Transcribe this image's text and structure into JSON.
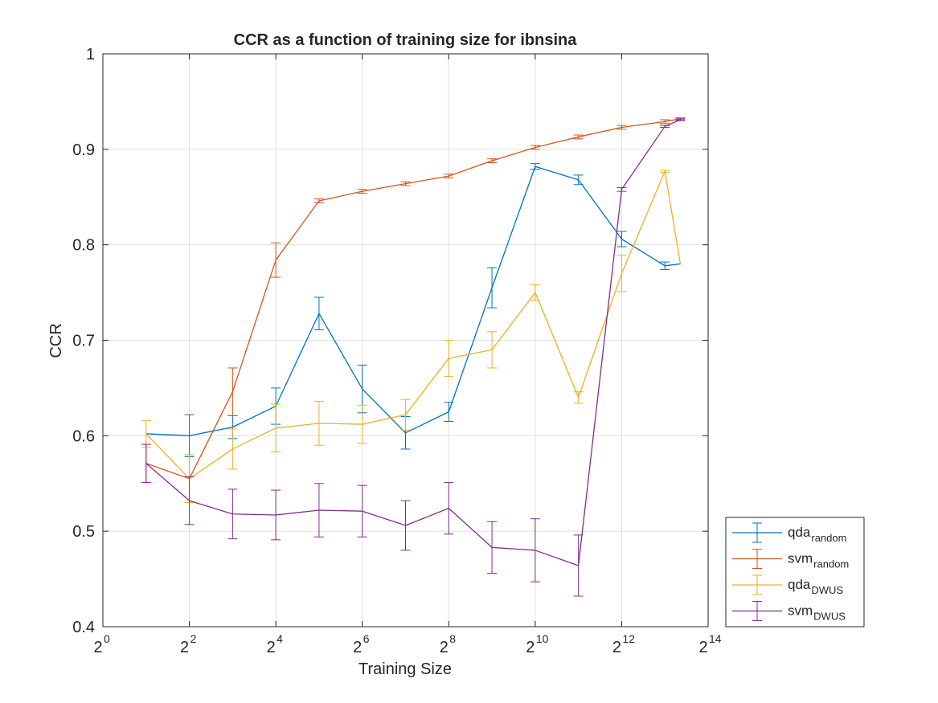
{
  "chart_data": {
    "type": "line",
    "title": "CCR as a function of training size for ibnsina",
    "xlabel": "Training Size",
    "ylabel": "CCR",
    "xscale": "log2",
    "xlim": [
      1,
      16384
    ],
    "ylim": [
      0.4,
      1
    ],
    "grid": true,
    "legend_position": "bottom-right outside",
    "x_ticks": [
      {
        "base": "2",
        "exp": "0",
        "value": 1
      },
      {
        "base": "2",
        "exp": "2",
        "value": 4
      },
      {
        "base": "2",
        "exp": "4",
        "value": 16
      },
      {
        "base": "2",
        "exp": "6",
        "value": 64
      },
      {
        "base": "2",
        "exp": "8",
        "value": 256
      },
      {
        "base": "2",
        "exp": "10",
        "value": 1024
      },
      {
        "base": "2",
        "exp": "12",
        "value": 4096
      },
      {
        "base": "2",
        "exp": "14",
        "value": 16384
      }
    ],
    "y_ticks": [
      {
        "label": "0.4",
        "value": 0.4
      },
      {
        "label": "0.5",
        "value": 0.5
      },
      {
        "label": "0.6",
        "value": 0.6
      },
      {
        "label": "0.7",
        "value": 0.7
      },
      {
        "label": "0.8",
        "value": 0.8
      },
      {
        "label": "0.9",
        "value": 0.9
      },
      {
        "label": "1",
        "value": 1
      }
    ],
    "x": [
      2,
      4,
      8,
      16,
      32,
      64,
      128,
      256,
      512,
      1024,
      2048,
      4096,
      8192,
      10500
    ],
    "series": [
      {
        "name": "qda",
        "subscript": "random",
        "color": "#0072BD",
        "y": [
          0.602,
          0.6,
          0.609,
          0.631,
          0.728,
          0.649,
          0.603,
          0.625,
          0.755,
          0.882,
          0.868,
          0.806,
          0.778,
          0.78
        ],
        "err": [
          0.0,
          0.022,
          0.012,
          0.019,
          0.017,
          0.025,
          0.017,
          0.01,
          0.021,
          0.003,
          0.005,
          0.008,
          0.004,
          0.0
        ]
      },
      {
        "name": "svm",
        "subscript": "random",
        "color": "#D95319",
        "y": [
          0.571,
          0.555,
          0.646,
          0.784,
          0.846,
          0.856,
          0.864,
          0.872,
          0.888,
          0.902,
          0.913,
          0.923,
          0.929,
          0.932
        ],
        "err": [
          0.02,
          0.025,
          0.025,
          0.018,
          0.002,
          0.002,
          0.002,
          0.002,
          0.002,
          0.002,
          0.002,
          0.002,
          0.002,
          0.001
        ]
      },
      {
        "name": "qda",
        "subscript": "DWUS",
        "color": "#EDB120",
        "y": [
          0.602,
          0.555,
          0.586,
          0.608,
          0.613,
          0.612,
          0.622,
          0.681,
          0.69,
          0.75,
          0.64,
          0.77,
          0.877,
          0.78
        ],
        "err": [
          0.014,
          0.025,
          0.021,
          0.025,
          0.023,
          0.02,
          0.016,
          0.019,
          0.019,
          0.008,
          0.006,
          0.019,
          0.001,
          0.0
        ]
      },
      {
        "name": "svm",
        "subscript": "DWUS",
        "color": "#7E2F8E",
        "y": [
          0.571,
          0.532,
          0.518,
          0.517,
          0.522,
          0.521,
          0.506,
          0.524,
          0.483,
          0.48,
          0.464,
          0.858,
          0.924,
          0.931
        ],
        "err": [
          0.02,
          0.025,
          0.026,
          0.026,
          0.028,
          0.027,
          0.026,
          0.027,
          0.027,
          0.033,
          0.032,
          0.002,
          0.001,
          0.001
        ]
      }
    ]
  }
}
